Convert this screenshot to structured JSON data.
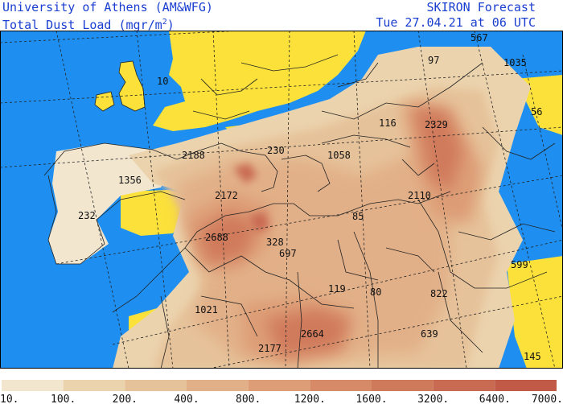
{
  "header": {
    "org": "University of Athens (AM&WFG)",
    "variable_text": "Total Dust Load (mgr/m",
    "variable_sup": "2",
    "variable_close": ")",
    "model": "SKIRON Forecast",
    "valid_time": "Tue 27.04.21 at 06 UTC"
  },
  "colors": {
    "sea": "#1e8ff0",
    "no_dust_land": "#fbe13a",
    "border_lines": "#222222",
    "header_text": "#1a3fd0"
  },
  "map_labels": [
    {
      "text": "567"
    },
    {
      "text": "10"
    },
    {
      "text": "97"
    },
    {
      "text": "1035"
    },
    {
      "text": "56"
    },
    {
      "text": "116"
    },
    {
      "text": "2329"
    },
    {
      "text": "2188"
    },
    {
      "text": "230"
    },
    {
      "text": "1058"
    },
    {
      "text": "1356"
    },
    {
      "text": "2172"
    },
    {
      "text": "2110"
    },
    {
      "text": "232"
    },
    {
      "text": "85"
    },
    {
      "text": "2688"
    },
    {
      "text": "697"
    },
    {
      "text": "328"
    },
    {
      "text": "599"
    },
    {
      "text": "119"
    },
    {
      "text": "80"
    },
    {
      "text": "822"
    },
    {
      "text": "1021"
    },
    {
      "text": "2664"
    },
    {
      "text": "639"
    },
    {
      "text": "2177"
    },
    {
      "text": "145"
    }
  ],
  "colorbar": {
    "bins": [
      {
        "color": "#f2e6cf"
      },
      {
        "color": "#ebd3ad"
      },
      {
        "color": "#e6c29a"
      },
      {
        "color": "#e2b088"
      },
      {
        "color": "#dd9d76"
      },
      {
        "color": "#d78a67"
      },
      {
        "color": "#d07a5c"
      },
      {
        "color": "#c96a52"
      },
      {
        "color": "#c25a48"
      }
    ],
    "ticks": [
      "10.",
      "100.",
      "200.",
      "400.",
      "800.",
      "1200.",
      "1600.",
      "3200.",
      "6400.",
      "7000."
    ]
  }
}
